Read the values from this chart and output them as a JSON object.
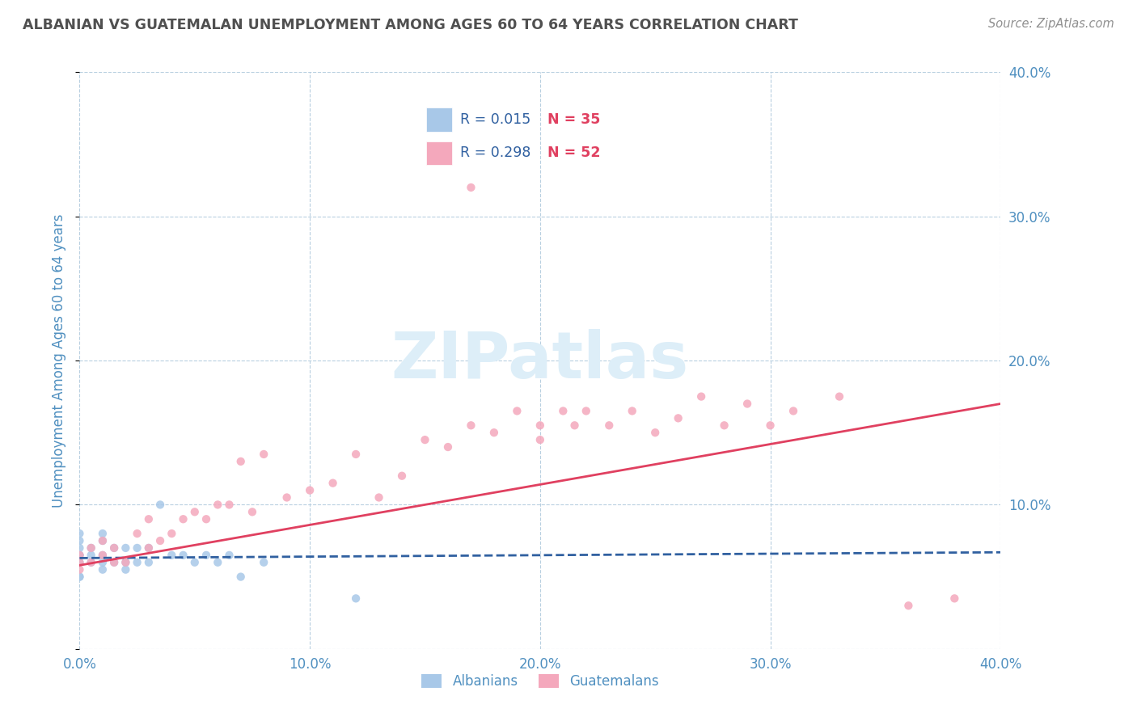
{
  "title": "ALBANIAN VS GUATEMALAN UNEMPLOYMENT AMONG AGES 60 TO 64 YEARS CORRELATION CHART",
  "source": "Source: ZipAtlas.com",
  "ylabel": "Unemployment Among Ages 60 to 64 years",
  "xlim": [
    0.0,
    0.4
  ],
  "ylim": [
    0.0,
    0.4
  ],
  "xticks": [
    0.0,
    0.1,
    0.2,
    0.3,
    0.4
  ],
  "yticks": [
    0.0,
    0.1,
    0.2,
    0.3,
    0.4
  ],
  "xticklabels": [
    "0.0%",
    "10.0%",
    "20.0%",
    "30.0%",
    "40.0%"
  ],
  "right_yticklabels": [
    "",
    "10.0%",
    "20.0%",
    "30.0%",
    "40.0%"
  ],
  "background_color": "#ffffff",
  "grid_color": "#b8cfe0",
  "albanian_color": "#a8c8e8",
  "guatemalan_color": "#f4a8bc",
  "albanian_line_color": "#3060a0",
  "guatemalan_line_color": "#e04060",
  "tick_color": "#5090c0",
  "title_color": "#505050",
  "source_color": "#909090",
  "watermark_color": "#ddeef8",
  "legend_r_color": "#3060a0",
  "legend_n_color": "#e04060",
  "albanian_label": "Albanians",
  "guatemalan_label": "Guatemalans",
  "albanian_scatter_x": [
    0.0,
    0.0,
    0.0,
    0.0,
    0.0,
    0.0,
    0.0,
    0.0,
    0.005,
    0.005,
    0.005,
    0.01,
    0.01,
    0.01,
    0.01,
    0.01,
    0.015,
    0.015,
    0.02,
    0.02,
    0.02,
    0.025,
    0.025,
    0.03,
    0.03,
    0.035,
    0.04,
    0.045,
    0.05,
    0.055,
    0.06,
    0.065,
    0.07,
    0.08,
    0.12
  ],
  "albanian_scatter_y": [
    0.05,
    0.05,
    0.06,
    0.065,
    0.065,
    0.07,
    0.075,
    0.08,
    0.06,
    0.065,
    0.07,
    0.055,
    0.06,
    0.065,
    0.075,
    0.08,
    0.06,
    0.07,
    0.055,
    0.06,
    0.07,
    0.06,
    0.07,
    0.06,
    0.07,
    0.1,
    0.065,
    0.065,
    0.06,
    0.065,
    0.06,
    0.065,
    0.05,
    0.06,
    0.035
  ],
  "guatemalan_scatter_x": [
    0.0,
    0.0,
    0.0,
    0.005,
    0.005,
    0.01,
    0.01,
    0.015,
    0.015,
    0.02,
    0.025,
    0.03,
    0.03,
    0.035,
    0.04,
    0.045,
    0.05,
    0.055,
    0.06,
    0.065,
    0.07,
    0.075,
    0.08,
    0.09,
    0.1,
    0.11,
    0.12,
    0.13,
    0.14,
    0.15,
    0.16,
    0.17,
    0.17,
    0.18,
    0.19,
    0.2,
    0.2,
    0.21,
    0.215,
    0.22,
    0.23,
    0.24,
    0.25,
    0.26,
    0.27,
    0.28,
    0.29,
    0.3,
    0.31,
    0.33,
    0.36,
    0.38
  ],
  "guatemalan_scatter_y": [
    0.055,
    0.06,
    0.065,
    0.06,
    0.07,
    0.065,
    0.075,
    0.06,
    0.07,
    0.06,
    0.08,
    0.07,
    0.09,
    0.075,
    0.08,
    0.09,
    0.095,
    0.09,
    0.1,
    0.1,
    0.13,
    0.095,
    0.135,
    0.105,
    0.11,
    0.115,
    0.135,
    0.105,
    0.12,
    0.145,
    0.14,
    0.32,
    0.155,
    0.15,
    0.165,
    0.145,
    0.155,
    0.165,
    0.155,
    0.165,
    0.155,
    0.165,
    0.15,
    0.16,
    0.175,
    0.155,
    0.17,
    0.155,
    0.165,
    0.175,
    0.03,
    0.035
  ],
  "albanian_trend_x": [
    0.0,
    0.4
  ],
  "albanian_trend_y": [
    0.063,
    0.067
  ],
  "guatemalan_trend_x": [
    0.0,
    0.4
  ],
  "guatemalan_trend_y": [
    0.058,
    0.17
  ]
}
